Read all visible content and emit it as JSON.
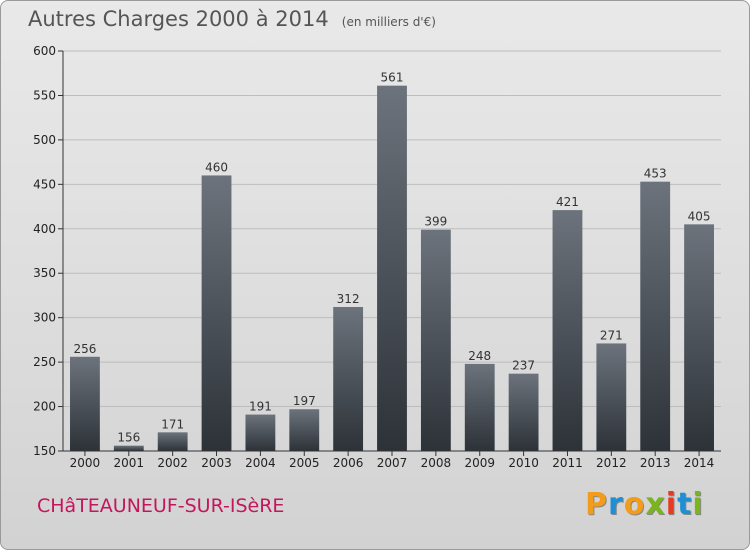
{
  "header": {
    "title": "Autres Charges 2000 à 2014",
    "subtitle": "(en milliers d'€)"
  },
  "footer": {
    "commune": "CHâTEAUNEUF-SUR-ISèRE",
    "logo": "Proxiti",
    "logo_colors": [
      "#f39c1b",
      "#1f8fd4",
      "#f39c1b",
      "#7ab51d",
      "#e63a24",
      "#1f8fd4",
      "#7ab51d"
    ]
  },
  "colors": {
    "bar_top": "#6c737c",
    "bar_bottom": "#2d3238",
    "axis": "#333333",
    "grid": "#bdbdbd",
    "commune": "#c4165d"
  },
  "chart_data": {
    "type": "bar",
    "title": "Autres Charges 2000 à 2014",
    "subtitle": "(en milliers d'€)",
    "categories": [
      "2000",
      "2001",
      "2002",
      "2003",
      "2004",
      "2005",
      "2006",
      "2007",
      "2008",
      "2009",
      "2010",
      "2011",
      "2012",
      "2013",
      "2014"
    ],
    "values": [
      256,
      156,
      171,
      460,
      191,
      197,
      312,
      561,
      399,
      248,
      237,
      421,
      271,
      453,
      405
    ],
    "ylim": [
      150,
      600
    ],
    "yticks": [
      150,
      200,
      250,
      300,
      350,
      400,
      450,
      500,
      550,
      600
    ],
    "grid": true,
    "xlabel": "",
    "ylabel": ""
  }
}
